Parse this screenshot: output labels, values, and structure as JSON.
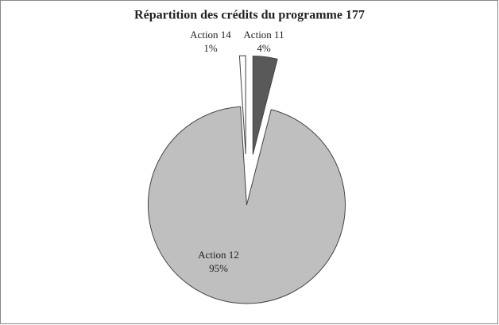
{
  "chart_data": {
    "type": "pie",
    "title": "Répartition des crédits du programme 177",
    "categories": [
      "Action 11",
      "Action 12",
      "Action 14"
    ],
    "values": [
      4,
      95,
      1
    ],
    "value_labels": [
      "4%",
      "95%",
      "1%"
    ],
    "colors": [
      "#595959",
      "#bfbfbf",
      "#ffffff"
    ]
  }
}
